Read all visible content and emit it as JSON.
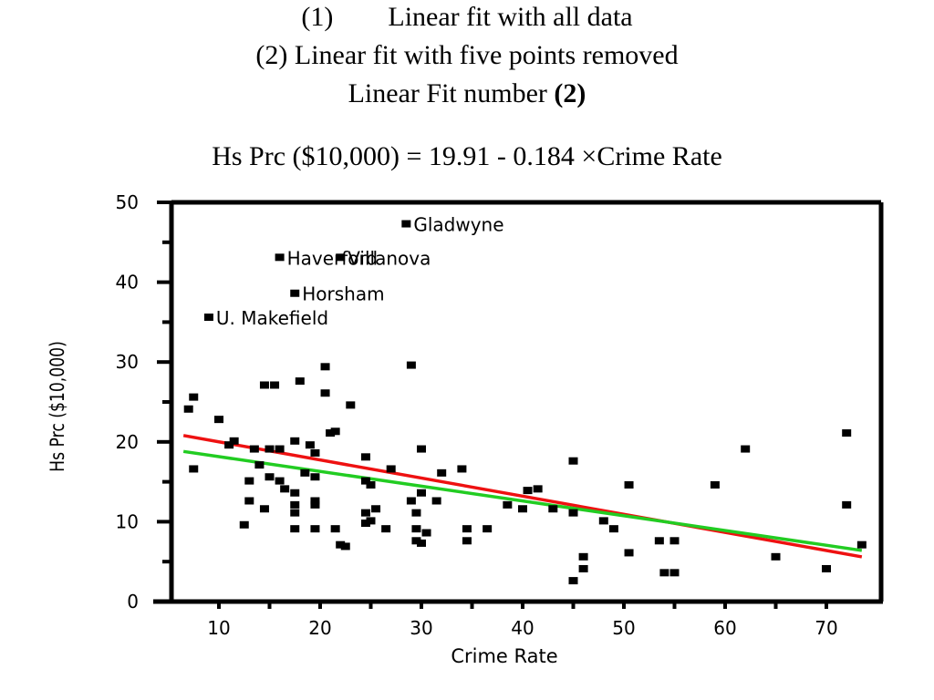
{
  "heading": {
    "line1_num": "(1)",
    "line1_text": "Linear fit with all data",
    "line2": "(2) Linear fit with five points removed",
    "line3_text": "Linear Fit number",
    "line3_bold": "(2)",
    "equation": "Hs Prc ($10,000) = 19.91 - 0.184 ×Crime Rate"
  },
  "chart_data": {
    "type": "scatter",
    "xlabel": "Crime Rate",
    "ylabel": "Hs Prc ($10,000)",
    "xlim": [
      5,
      75
    ],
    "ylim": [
      0,
      50
    ],
    "xticks": [
      10,
      20,
      30,
      40,
      50,
      60,
      70
    ],
    "yticks": [
      0,
      10,
      20,
      30,
      40,
      50
    ],
    "grid": false,
    "points": [
      {
        "x": 7,
        "y": 24
      },
      {
        "x": 7.5,
        "y": 25.5
      },
      {
        "x": 7.5,
        "y": 16.5
      },
      {
        "x": 10,
        "y": 22.7
      },
      {
        "x": 11.5,
        "y": 20
      },
      {
        "x": 11,
        "y": 19.5
      },
      {
        "x": 12.5,
        "y": 9.5
      },
      {
        "x": 13,
        "y": 15
      },
      {
        "x": 13,
        "y": 12.5
      },
      {
        "x": 13.5,
        "y": 19
      },
      {
        "x": 14,
        "y": 17
      },
      {
        "x": 14.5,
        "y": 11.5
      },
      {
        "x": 14.5,
        "y": 27
      },
      {
        "x": 15,
        "y": 19
      },
      {
        "x": 15,
        "y": 15.5
      },
      {
        "x": 15.5,
        "y": 27
      },
      {
        "x": 16,
        "y": 19
      },
      {
        "x": 16,
        "y": 15
      },
      {
        "x": 16.5,
        "y": 14
      },
      {
        "x": 17.5,
        "y": 20
      },
      {
        "x": 17.5,
        "y": 13.5
      },
      {
        "x": 17.5,
        "y": 12
      },
      {
        "x": 17.5,
        "y": 11
      },
      {
        "x": 17.5,
        "y": 9
      },
      {
        "x": 18,
        "y": 27.5
      },
      {
        "x": 18.5,
        "y": 16
      },
      {
        "x": 19,
        "y": 19.5
      },
      {
        "x": 19.5,
        "y": 18.5
      },
      {
        "x": 19.5,
        "y": 15.5
      },
      {
        "x": 19.5,
        "y": 12.5
      },
      {
        "x": 19.5,
        "y": 12
      },
      {
        "x": 19.5,
        "y": 9
      },
      {
        "x": 20.5,
        "y": 29.3
      },
      {
        "x": 20.5,
        "y": 26
      },
      {
        "x": 21,
        "y": 21
      },
      {
        "x": 21.5,
        "y": 21.2
      },
      {
        "x": 21.5,
        "y": 9
      },
      {
        "x": 22,
        "y": 7
      },
      {
        "x": 22.5,
        "y": 6.8
      },
      {
        "x": 23,
        "y": 24.5
      },
      {
        "x": 24.5,
        "y": 18
      },
      {
        "x": 24.5,
        "y": 15
      },
      {
        "x": 24.5,
        "y": 11
      },
      {
        "x": 24.5,
        "y": 9.7
      },
      {
        "x": 25,
        "y": 14.5
      },
      {
        "x": 25,
        "y": 10
      },
      {
        "x": 25.5,
        "y": 11.5
      },
      {
        "x": 26.5,
        "y": 9
      },
      {
        "x": 27,
        "y": 16.5
      },
      {
        "x": 29,
        "y": 29.5
      },
      {
        "x": 29,
        "y": 12.5
      },
      {
        "x": 29.5,
        "y": 11
      },
      {
        "x": 29.5,
        "y": 9
      },
      {
        "x": 29.5,
        "y": 7.5
      },
      {
        "x": 30,
        "y": 19
      },
      {
        "x": 30,
        "y": 13.5
      },
      {
        "x": 30,
        "y": 7.2
      },
      {
        "x": 30.5,
        "y": 8.5
      },
      {
        "x": 31.5,
        "y": 12.5
      },
      {
        "x": 32,
        "y": 16
      },
      {
        "x": 34,
        "y": 16.5
      },
      {
        "x": 34.5,
        "y": 7.5
      },
      {
        "x": 34.5,
        "y": 9
      },
      {
        "x": 36.5,
        "y": 9
      },
      {
        "x": 38.5,
        "y": 12
      },
      {
        "x": 40,
        "y": 11.5
      },
      {
        "x": 40.5,
        "y": 13.8
      },
      {
        "x": 41.5,
        "y": 14
      },
      {
        "x": 43,
        "y": 11.5
      },
      {
        "x": 45,
        "y": 17.5
      },
      {
        "x": 45,
        "y": 11
      },
      {
        "x": 45,
        "y": 2.5
      },
      {
        "x": 46,
        "y": 4
      },
      {
        "x": 46,
        "y": 5.5
      },
      {
        "x": 48,
        "y": 10
      },
      {
        "x": 49,
        "y": 9
      },
      {
        "x": 50.5,
        "y": 14.5
      },
      {
        "x": 50.5,
        "y": 6
      },
      {
        "x": 53.5,
        "y": 7.5
      },
      {
        "x": 54,
        "y": 3.5
      },
      {
        "x": 55,
        "y": 3.5
      },
      {
        "x": 55,
        "y": 7.5
      },
      {
        "x": 59,
        "y": 14.5
      },
      {
        "x": 62,
        "y": 19
      },
      {
        "x": 65,
        "y": 5.5
      },
      {
        "x": 70,
        "y": 4
      },
      {
        "x": 72,
        "y": 21
      },
      {
        "x": 72,
        "y": 12
      },
      {
        "x": 73.5,
        "y": 7
      }
    ],
    "labeled_points": [
      {
        "x": 28.5,
        "y": 47.2,
        "label": "Gladwyne"
      },
      {
        "x": 16,
        "y": 43,
        "label": "Haverford"
      },
      {
        "x": 22,
        "y": 43,
        "label": "Villanova"
      },
      {
        "x": 17.5,
        "y": 38.5,
        "label": "Horsham"
      },
      {
        "x": 9,
        "y": 35.5,
        "label": "U. Makefield"
      }
    ],
    "fit_lines": [
      {
        "color": "#ee1111",
        "x": [
          6.5,
          73.5
        ],
        "y": [
          20.8,
          5.6
        ]
      },
      {
        "color": "#22cc22",
        "x": [
          6.5,
          73.5
        ],
        "y": [
          18.8,
          6.4
        ]
      }
    ]
  }
}
